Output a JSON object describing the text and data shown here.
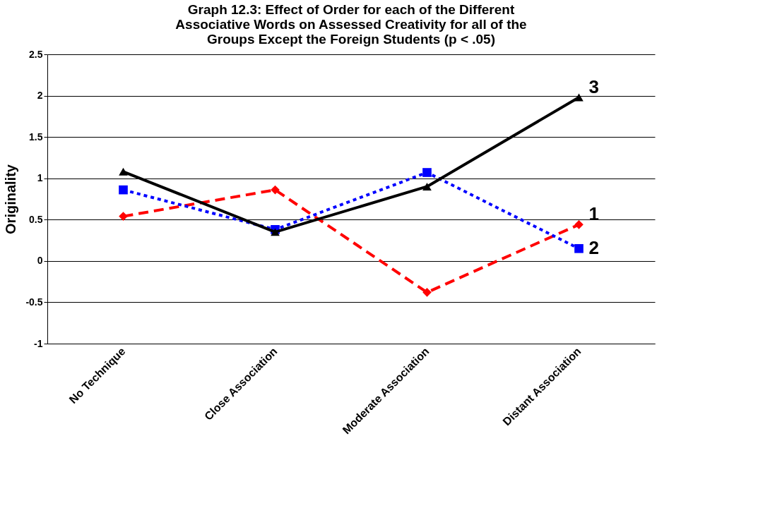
{
  "chart_data": {
    "type": "line",
    "title": "Graph 12.3: Effect of Order for each of the Different\nAssociative Words on Assessed Creativity for all of the\nGroups Except the Foreign Students (p < .05)",
    "ylabel": "Originality",
    "categories": [
      "No Technique",
      "Close Association",
      "Moderate Association",
      "Distant Association"
    ],
    "series": [
      {
        "name": "1",
        "color": "#ff0000",
        "values": [
          0.54,
          0.86,
          -0.38,
          0.44
        ],
        "marker": "diamond",
        "line_style": "dashed"
      },
      {
        "name": "2",
        "color": "#0000ff",
        "values": [
          0.86,
          0.38,
          1.07,
          0.15
        ],
        "marker": "square",
        "line_style": "dotted"
      },
      {
        "name": "3",
        "color": "#000000",
        "values": [
          1.08,
          0.35,
          0.9,
          1.98
        ],
        "marker": "triangle",
        "line_style": "solid"
      }
    ],
    "ylim": [
      -1,
      2.5
    ],
    "yticks": [
      -1,
      -0.5,
      0,
      0.5,
      1,
      1.5,
      2,
      2.5
    ],
    "grid": "y",
    "legend": false
  }
}
